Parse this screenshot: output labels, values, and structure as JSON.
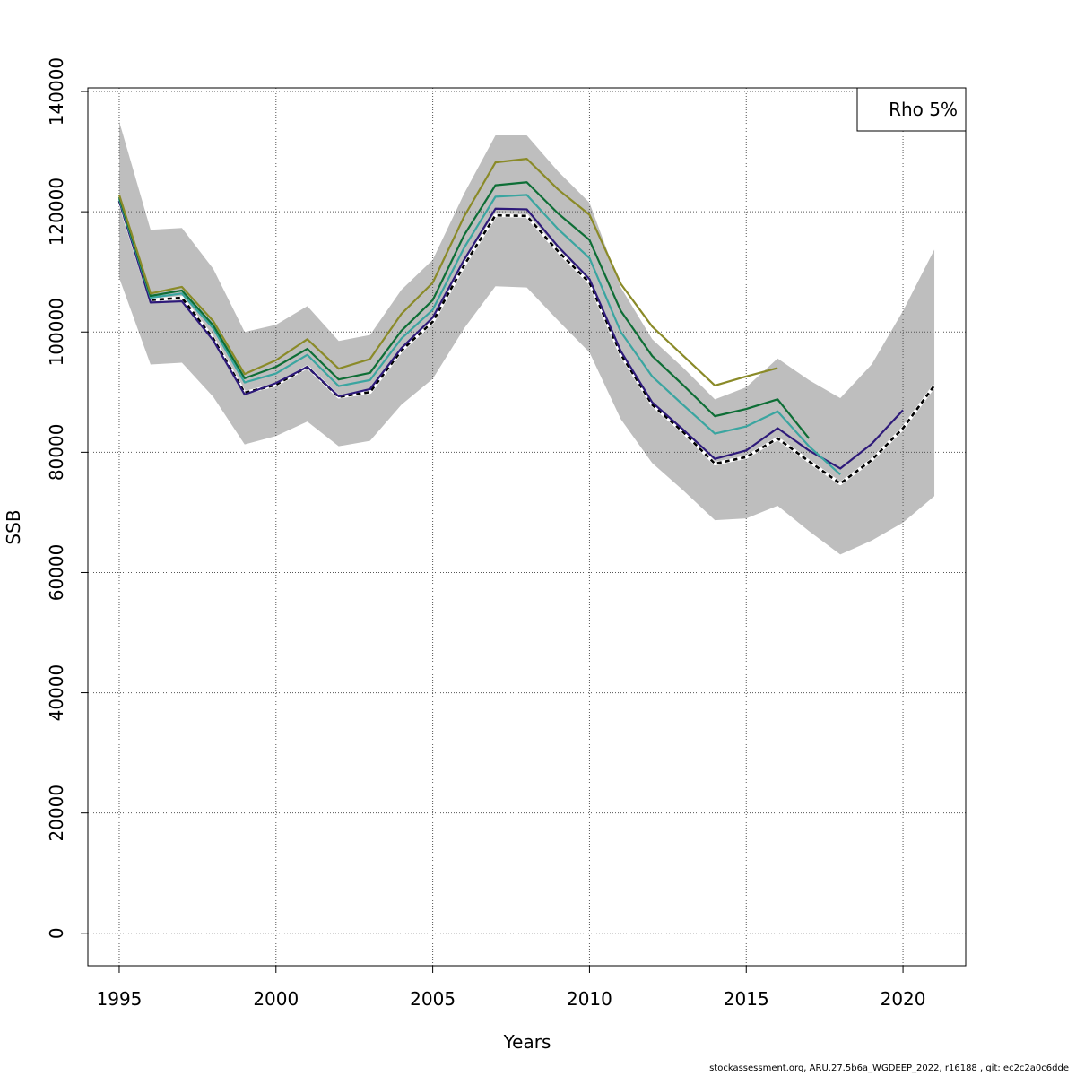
{
  "chart_data": {
    "type": "line",
    "xlabel": "Years",
    "ylabel": "SSB",
    "xlim": [
      1994,
      2022
    ],
    "ylim": [
      -5400,
      140600
    ],
    "x_ticks": [
      1995,
      2000,
      2005,
      2010,
      2015,
      2020
    ],
    "y_ticks": [
      0,
      20000,
      40000,
      60000,
      80000,
      100000,
      120000,
      140000
    ],
    "grid": true,
    "legend": {
      "position": "top-right",
      "entries": [
        "Rho 5%"
      ]
    },
    "band": {
      "color": "#bebebe",
      "x": [
        1995,
        1996,
        1997,
        1998,
        1999,
        2000,
        2001,
        2002,
        2003,
        2004,
        2005,
        2006,
        2007,
        2008,
        2009,
        2010,
        2011,
        2012,
        2013,
        2014,
        2015,
        2016,
        2017,
        2018,
        2019,
        2020,
        2021
      ],
      "upper": [
        135000,
        117000,
        117300,
        110500,
        100000,
        101200,
        104300,
        98500,
        99500,
        107000,
        112000,
        123000,
        132700,
        132700,
        126700,
        121500,
        107400,
        98800,
        94000,
        88800,
        90800,
        95600,
        92000,
        89000,
        94600,
        103500,
        113700
      ],
      "lower": [
        109000,
        94600,
        94900,
        89200,
        81300,
        82700,
        85100,
        81000,
        81900,
        87900,
        92200,
        100600,
        107600,
        107400,
        101900,
        96600,
        85500,
        78200,
        73600,
        68700,
        69000,
        71100,
        66900,
        63000,
        65300,
        68300,
        72700
      ]
    },
    "series": [
      {
        "color": "#000000",
        "dashed": true,
        "width": 2.6,
        "x": [
          1995,
          1996,
          1997,
          1998,
          1999,
          2000,
          2001,
          2002,
          2003,
          2004,
          2005,
          2006,
          2007,
          2008,
          2009,
          2010,
          2011,
          2012,
          2013,
          2014,
          2015,
          2016,
          2017,
          2018,
          2019,
          2020,
          2021
        ],
        "values": [
          121800,
          105300,
          105700,
          98900,
          89900,
          91200,
          94200,
          89200,
          90000,
          96900,
          101700,
          111100,
          119400,
          119300,
          113400,
          108200,
          96300,
          87900,
          83300,
          78100,
          79200,
          82300,
          78500,
          74800,
          78700,
          84000,
          91100
        ]
      },
      {
        "color": "#2e1a7a",
        "dashed": false,
        "width": 2.2,
        "x": [
          1995,
          1996,
          1997,
          1998,
          1999,
          2000,
          2001,
          2002,
          2003,
          2004,
          2005,
          2006,
          2007,
          2008,
          2009,
          2010,
          2011,
          2012,
          2013,
          2014,
          2015,
          2016,
          2017,
          2018,
          2019,
          2020
        ],
        "values": [
          121800,
          104900,
          105100,
          98600,
          89600,
          91500,
          94200,
          89300,
          90500,
          97300,
          102400,
          112000,
          120500,
          120400,
          114200,
          108800,
          96800,
          88300,
          83700,
          78900,
          80300,
          84000,
          80300,
          77300,
          81400,
          87000
        ]
      },
      {
        "color": "#3aa5a0",
        "dashed": false,
        "width": 2.2,
        "x": [
          1995,
          1996,
          1997,
          1998,
          1999,
          2000,
          2001,
          2002,
          2003,
          2004,
          2005,
          2006,
          2007,
          2008,
          2009,
          2010,
          2011,
          2012,
          2013,
          2014,
          2015,
          2016,
          2017,
          2018
        ],
        "values": [
          122100,
          105700,
          106400,
          100600,
          91600,
          93100,
          96200,
          91000,
          92000,
          98900,
          103700,
          114000,
          122500,
          122800,
          117100,
          112300,
          100000,
          92600,
          87800,
          83100,
          84300,
          86800,
          81000,
          76300
        ]
      },
      {
        "color": "#0e6e36",
        "dashed": false,
        "width": 2.2,
        "x": [
          1995,
          1996,
          1997,
          1998,
          1999,
          2000,
          2001,
          2002,
          2003,
          2004,
          2005,
          2006,
          2007,
          2008,
          2009,
          2010,
          2011,
          2012,
          2013,
          2014,
          2015,
          2016,
          2017
        ],
        "values": [
          122400,
          106000,
          106900,
          101100,
          92300,
          94200,
          97200,
          92100,
          93200,
          100200,
          105300,
          116100,
          124400,
          124900,
          119700,
          115300,
          103500,
          96000,
          91100,
          86000,
          87200,
          88800,
          82300
        ]
      },
      {
        "color": "#8a8a28",
        "dashed": false,
        "width": 2.2,
        "x": [
          1995,
          1996,
          1997,
          1998,
          1999,
          2000,
          2001,
          2002,
          2003,
          2004,
          2005,
          2006,
          2007,
          2008,
          2009,
          2010,
          2011,
          2012,
          2013,
          2014,
          2015,
          2016
        ],
        "values": [
          122800,
          106400,
          107500,
          101800,
          93000,
          95300,
          98800,
          93900,
          95500,
          103000,
          108200,
          119200,
          128200,
          128800,
          123700,
          119500,
          108000,
          100900,
          96000,
          91100,
          92600,
          94000
        ]
      }
    ]
  },
  "footer": "stockassessment.org, ARU.27.5b6a_WGDEEP_2022, r16188 , git: ec2c2a0c6dde"
}
